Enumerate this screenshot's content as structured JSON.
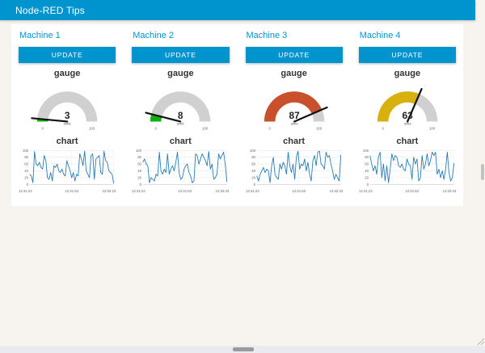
{
  "header": {
    "title": "Node-RED Tips"
  },
  "colors": {
    "accent": "#0094ce",
    "gauge_track": "#d0d0d0",
    "chart_line": "#1f77b4",
    "grid": "#e6e6e6",
    "axis_text": "#666666",
    "needle": "#111111"
  },
  "machines": [
    {
      "title": "Machine 1",
      "button_label": "UPDATE",
      "gauge": {
        "title": "gauge",
        "value": 3,
        "min": 0,
        "max": 100,
        "units": "units",
        "seg_color": "#0eb20e"
      }
    },
    {
      "title": "Machine 2",
      "button_label": "UPDATE",
      "gauge": {
        "title": "gauge",
        "value": 8,
        "min": 0,
        "max": 100,
        "units": "units",
        "seg_color": "#0eb20e"
      }
    },
    {
      "title": "Machine 3",
      "button_label": "UPDATE",
      "gauge": {
        "title": "gauge",
        "value": 87,
        "min": 0,
        "max": 100,
        "units": "units",
        "seg_color": "#c8502a"
      }
    },
    {
      "title": "Machine 4",
      "button_label": "UPDATE",
      "gauge": {
        "title": "gauge",
        "value": 63,
        "min": 0,
        "max": 100,
        "units": "units",
        "seg_color": "#d9b10e"
      }
    }
  ],
  "chart_data": [
    {
      "type": "line",
      "title": "chart",
      "ylim": [
        0,
        100
      ],
      "y_ticks": [
        0,
        20,
        40,
        60,
        80,
        100
      ],
      "x_ticks": [
        "12:31:23",
        "12:31:53",
        "12:32:23"
      ],
      "values": [
        30,
        25,
        5,
        97,
        60,
        55,
        65,
        50,
        45,
        85,
        70,
        20,
        15,
        35,
        10,
        55,
        50,
        60,
        40,
        35,
        45,
        30,
        25,
        70,
        55,
        40,
        20,
        35,
        10,
        30,
        25,
        90,
        75,
        55,
        98,
        40,
        30,
        20,
        85,
        90,
        15,
        75,
        80,
        85,
        35,
        30,
        98,
        70,
        65,
        40,
        35,
        30,
        3
      ]
    },
    {
      "type": "line",
      "title": "chart",
      "ylim": [
        0,
        100
      ],
      "y_ticks": [
        0,
        20,
        40,
        60,
        80,
        100
      ],
      "x_ticks": [
        "12:31:23",
        "12:31:53",
        "12:32:23"
      ],
      "values": [
        65,
        75,
        60,
        55,
        5,
        20,
        15,
        10,
        30,
        25,
        95,
        40,
        30,
        45,
        35,
        90,
        30,
        45,
        55,
        40,
        65,
        95,
        35,
        15,
        20,
        45,
        55,
        60,
        35,
        25,
        5,
        10,
        90,
        85,
        60,
        75,
        90,
        80,
        70,
        55,
        97,
        45,
        60,
        15,
        20,
        30,
        90,
        75,
        85,
        95,
        60,
        8
      ]
    },
    {
      "type": "line",
      "title": "chart",
      "ylim": [
        0,
        100
      ],
      "y_ticks": [
        0,
        20,
        40,
        60,
        80,
        100
      ],
      "x_ticks": [
        "12:31:23",
        "12:31:53",
        "12:32:23"
      ],
      "values": [
        25,
        10,
        30,
        40,
        50,
        35,
        45,
        40,
        5,
        55,
        80,
        30,
        20,
        15,
        60,
        45,
        65,
        55,
        30,
        95,
        55,
        35,
        60,
        15,
        80,
        98,
        45,
        60,
        55,
        75,
        40,
        65,
        30,
        10,
        70,
        85,
        55,
        95,
        98,
        60,
        55,
        45,
        95,
        80,
        85,
        60,
        40,
        15,
        30,
        20,
        10,
        87
      ]
    },
    {
      "type": "line",
      "title": "chart",
      "ylim": [
        0,
        100
      ],
      "y_ticks": [
        0,
        20,
        40,
        60,
        80,
        100
      ],
      "x_ticks": [
        "12:31:23",
        "12:31:53",
        "12:32:23"
      ],
      "values": [
        85,
        60,
        40,
        55,
        30,
        80,
        95,
        20,
        60,
        10,
        55,
        5,
        45,
        90,
        70,
        85,
        80,
        55,
        50,
        60,
        45,
        40,
        75,
        60,
        55,
        15,
        80,
        60,
        75,
        10,
        20,
        85,
        45,
        60,
        90,
        55,
        70,
        95,
        85,
        95,
        30,
        45,
        20,
        40,
        15,
        45,
        95,
        35,
        10,
        20,
        63
      ]
    }
  ]
}
